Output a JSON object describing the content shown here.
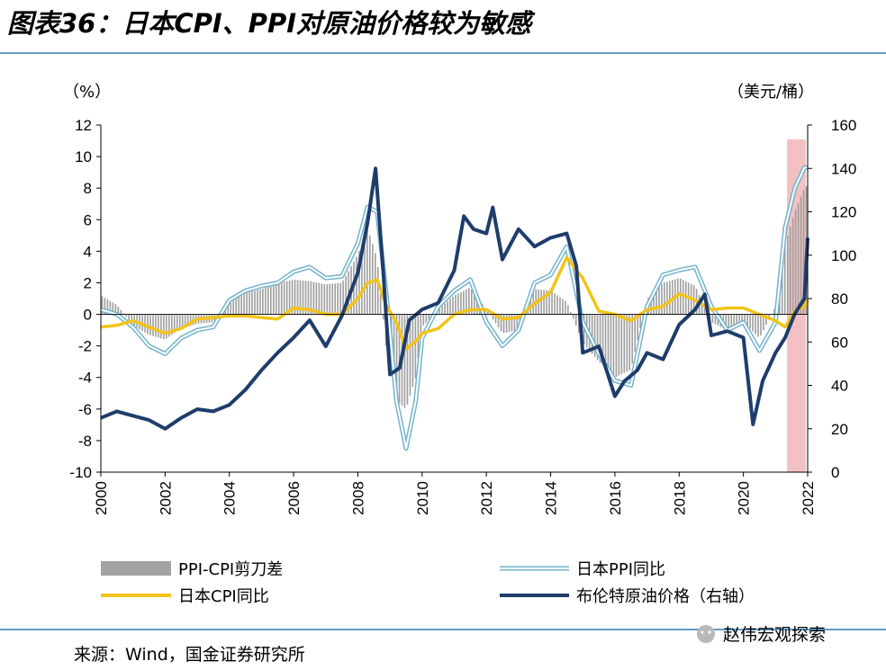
{
  "title": "图表36：日本CPI、PPI对原油价格较为敏感",
  "source": "来源：Wind，国金证券研究所",
  "watermark": "赵伟宏观探索",
  "colors": {
    "spread": "#9e9e9e",
    "cpi": "#f2c31a",
    "ppi_outer": "#74b3cc",
    "oil": "#1f3d6b",
    "highlight": "#f2b6b9",
    "rule": "#2a7fb0"
  },
  "chart_data": {
    "type": "line",
    "left_axis": {
      "label": "（%）",
      "min": -10,
      "max": 12,
      "ticks": [
        -10,
        -8,
        -6,
        -4,
        -2,
        0,
        2,
        4,
        6,
        8,
        10,
        12
      ]
    },
    "right_axis": {
      "label": "（美元/桶）",
      "min": 0,
      "max": 160,
      "ticks": [
        0,
        20,
        40,
        60,
        80,
        100,
        120,
        140,
        160
      ]
    },
    "x_ticks": [
      "2000",
      "2002",
      "2004",
      "2006",
      "2008",
      "2010",
      "2012",
      "2014",
      "2016",
      "2018",
      "2020",
      "2022"
    ],
    "x_range": [
      2000.0,
      2022.0
    ],
    "highlight_range": [
      2021.3,
      2022.0
    ],
    "grid": false,
    "legend_position": "bottom",
    "series": [
      {
        "name": "PPI-CPI剪刀差",
        "type": "bar",
        "axis": "left",
        "x": [
          2000.0,
          2000.5,
          2001.0,
          2001.5,
          2002.0,
          2002.5,
          2003.0,
          2003.5,
          2004.0,
          2004.5,
          2005.0,
          2005.5,
          2006.0,
          2006.5,
          2007.0,
          2007.5,
          2008.0,
          2008.3,
          2008.6,
          2008.9,
          2009.2,
          2009.5,
          2009.8,
          2010.0,
          2010.5,
          2011.0,
          2011.5,
          2012.0,
          2012.5,
          2013.0,
          2013.5,
          2014.0,
          2014.5,
          2015.0,
          2015.5,
          2016.0,
          2016.5,
          2017.0,
          2017.5,
          2018.0,
          2018.5,
          2019.0,
          2019.5,
          2020.0,
          2020.5,
          2021.0,
          2021.3,
          2021.6,
          2021.9,
          2022.0
        ],
        "values": [
          1.2,
          0.6,
          -0.7,
          -1.3,
          -1.6,
          -0.9,
          -0.6,
          -0.5,
          0.7,
          1.4,
          1.6,
          2.0,
          2.2,
          2.1,
          1.9,
          2.0,
          3.8,
          5.5,
          3.5,
          -2.5,
          -5.5,
          -6.0,
          -4.0,
          -0.8,
          0.3,
          1.2,
          1.7,
          0.3,
          -1.2,
          -1.0,
          1.6,
          1.5,
          0.8,
          -1.8,
          -3.0,
          -4.0,
          -3.5,
          1.0,
          2.0,
          2.3,
          1.8,
          -0.5,
          -1.0,
          -0.5,
          -1.5,
          0.5,
          4.5,
          6.5,
          8.0,
          8.2
        ]
      },
      {
        "name": "日本PPI同比",
        "type": "line",
        "axis": "left",
        "x": [
          2000.0,
          2000.5,
          2001.0,
          2001.5,
          2002.0,
          2002.5,
          2003.0,
          2003.5,
          2004.0,
          2004.5,
          2005.0,
          2005.5,
          2006.0,
          2006.5,
          2007.0,
          2007.5,
          2008.0,
          2008.3,
          2008.6,
          2008.9,
          2009.2,
          2009.5,
          2009.8,
          2010.0,
          2010.5,
          2011.0,
          2011.5,
          2012.0,
          2012.5,
          2013.0,
          2013.5,
          2014.0,
          2014.5,
          2015.0,
          2015.5,
          2016.0,
          2016.5,
          2017.0,
          2017.5,
          2018.0,
          2018.5,
          2019.0,
          2019.5,
          2020.0,
          2020.5,
          2021.0,
          2021.3,
          2021.6,
          2021.9,
          2022.0
        ],
        "values": [
          0.3,
          0.0,
          -0.8,
          -2.0,
          -2.5,
          -1.5,
          -1.0,
          -0.8,
          0.9,
          1.5,
          1.8,
          2.0,
          2.7,
          3.0,
          2.3,
          2.4,
          4.5,
          6.8,
          6.5,
          1.0,
          -5.5,
          -8.5,
          -5.5,
          -1.5,
          0.5,
          1.5,
          2.2,
          -0.5,
          -2.0,
          -1.0,
          2.0,
          2.5,
          4.3,
          -0.5,
          -2.5,
          -4.2,
          -4.5,
          0.5,
          2.5,
          2.8,
          3.0,
          0.5,
          -1.0,
          -0.5,
          -2.3,
          -0.5,
          5.5,
          8.0,
          9.3,
          9.3
        ]
      },
      {
        "name": "日本CPI同比",
        "type": "line",
        "axis": "left",
        "x": [
          2000.0,
          2000.5,
          2001.0,
          2001.5,
          2002.0,
          2002.5,
          2003.0,
          2003.5,
          2004.0,
          2004.5,
          2005.0,
          2005.5,
          2006.0,
          2006.5,
          2007.0,
          2007.5,
          2008.0,
          2008.3,
          2008.6,
          2008.9,
          2009.2,
          2009.5,
          2009.8,
          2010.0,
          2010.5,
          2011.0,
          2011.5,
          2012.0,
          2012.5,
          2013.0,
          2013.5,
          2014.0,
          2014.5,
          2015.0,
          2015.5,
          2016.0,
          2016.5,
          2017.0,
          2017.5,
          2018.0,
          2018.5,
          2019.0,
          2019.5,
          2020.0,
          2020.5,
          2021.0,
          2021.3,
          2021.6,
          2021.9,
          2022.0
        ],
        "values": [
          -0.8,
          -0.7,
          -0.4,
          -0.8,
          -1.2,
          -0.9,
          -0.3,
          -0.2,
          -0.1,
          -0.1,
          -0.2,
          -0.3,
          0.4,
          0.3,
          0.0,
          0.0,
          1.0,
          2.0,
          2.2,
          0.5,
          -0.5,
          -2.2,
          -1.7,
          -1.2,
          -0.9,
          0.0,
          0.3,
          0.3,
          -0.3,
          -0.2,
          0.7,
          1.4,
          3.6,
          2.3,
          0.2,
          0.0,
          -0.4,
          0.3,
          0.5,
          1.3,
          0.9,
          0.3,
          0.4,
          0.4,
          0.0,
          -0.4,
          -0.8,
          0.2,
          0.5,
          0.9
        ]
      },
      {
        "name": "布伦特原油价格（右轴）",
        "type": "line",
        "axis": "right",
        "x": [
          2000.0,
          2000.5,
          2001.0,
          2001.5,
          2002.0,
          2002.5,
          2003.0,
          2003.5,
          2004.0,
          2004.5,
          2005.0,
          2005.5,
          2006.0,
          2006.5,
          2007.0,
          2007.5,
          2008.0,
          2008.3,
          2008.55,
          2008.8,
          2009.0,
          2009.3,
          2009.6,
          2010.0,
          2010.5,
          2011.0,
          2011.3,
          2011.6,
          2012.0,
          2012.2,
          2012.5,
          2013.0,
          2013.5,
          2014.0,
          2014.5,
          2014.8,
          2015.0,
          2015.5,
          2016.0,
          2016.3,
          2016.7,
          2017.0,
          2017.5,
          2018.0,
          2018.5,
          2018.8,
          2019.0,
          2019.5,
          2020.0,
          2020.3,
          2020.6,
          2021.0,
          2021.3,
          2021.6,
          2021.9,
          2022.0
        ],
        "values": [
          25,
          28,
          26,
          24,
          20,
          25,
          29,
          28,
          31,
          38,
          47,
          55,
          62,
          70,
          58,
          72,
          92,
          115,
          140,
          90,
          45,
          48,
          70,
          75,
          78,
          93,
          118,
          112,
          110,
          122,
          98,
          112,
          104,
          108,
          110,
          95,
          55,
          58,
          35,
          42,
          47,
          55,
          52,
          68,
          75,
          82,
          63,
          65,
          62,
          22,
          42,
          55,
          62,
          73,
          80,
          108
        ]
      }
    ]
  },
  "legend": [
    {
      "name": "PPI-CPI剪刀差",
      "swatch": "bar"
    },
    {
      "name": "日本PPI同比",
      "swatch": "double-line"
    },
    {
      "name": "日本CPI同比",
      "swatch": "line-yellow"
    },
    {
      "name": "布伦特原油价格（右轴）",
      "swatch": "line-navy"
    }
  ]
}
